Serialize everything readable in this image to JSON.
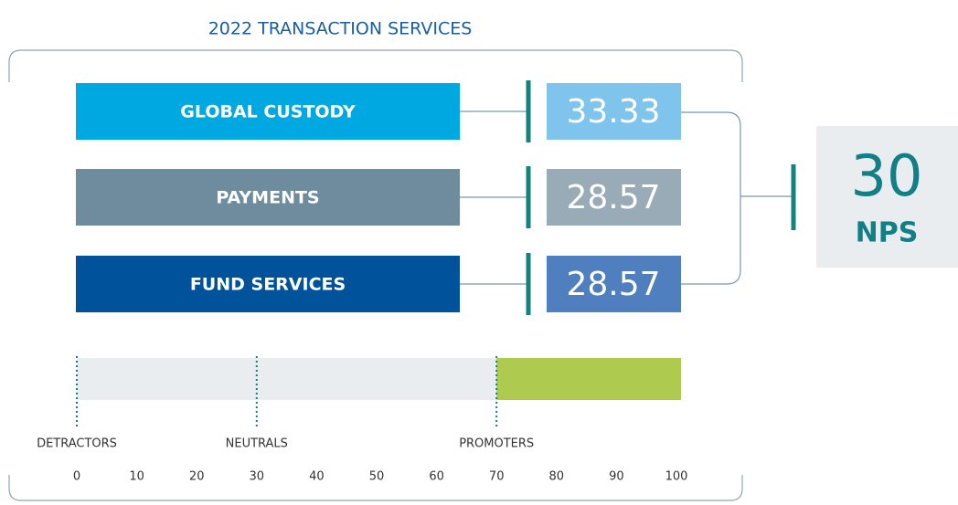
{
  "title": "2022 TRANSACTION SERVICES",
  "rows": [
    {
      "label": "GLOBAL CUSTODY",
      "score": 33.33,
      "color": "#00a8e1",
      "box_color": "#7fc4ec"
    },
    {
      "label": "PAYMENTS",
      "score": 28.57,
      "color": "#6e8c9e",
      "box_color": "#9aabb8"
    },
    {
      "label": "FUND SERVICES",
      "score": 28.57,
      "color": "#00529b",
      "box_color": "#4f7fbe"
    }
  ],
  "nps": {
    "value": 30,
    "label": "NPS"
  },
  "scale": {
    "ticks": [
      0,
      10,
      20,
      30,
      40,
      50,
      60,
      70,
      80,
      90,
      100
    ],
    "markers": [
      {
        "label": "DETRACTORS",
        "value": 0
      },
      {
        "label": "NEUTRALS",
        "value": 30
      },
      {
        "label": "PROMOTERS",
        "value": 70
      }
    ],
    "promoter_color": "#aecb4f"
  }
}
